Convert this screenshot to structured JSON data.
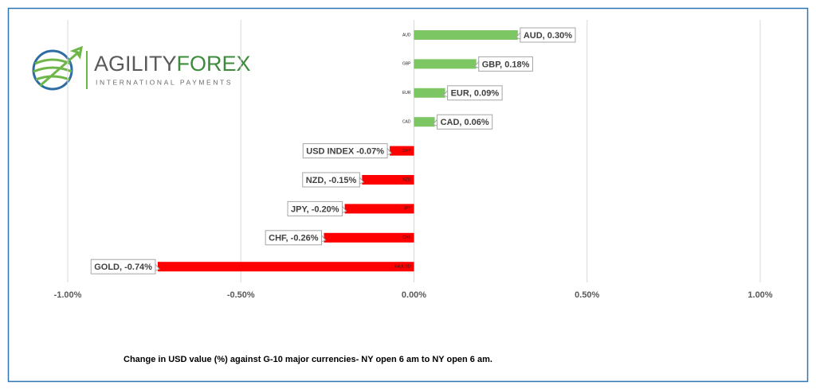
{
  "logo": {
    "brand_first": "AGILITY",
    "brand_second": "FOREX",
    "tagline": "INTERNATIONAL PAYMENTS"
  },
  "chart_data": {
    "type": "barh",
    "caption": "Change in  USD value (%)  against  G-10 major currencies- NY open 6 am to NY open 6 am.",
    "categories": [
      "AUD",
      "GBP",
      "EUR",
      "CAD",
      "DXY",
      "NZD",
      "JPY",
      "CHF",
      "XAUUSD"
    ],
    "values": [
      0.3,
      0.18,
      0.09,
      0.06,
      -0.07,
      -0.15,
      -0.2,
      -0.26,
      -0.74
    ],
    "value_labels": [
      "AUD, 0.30%",
      "GBP, 0.18%",
      "EUR, 0.09%",
      "CAD, 0.06%",
      "USD INDEX -0.07%",
      "NZD, -0.15%",
      "JPY, -0.20%",
      "CHF, -0.26%",
      "GOLD, -0.74%"
    ],
    "colors": [
      "#7cc764",
      "#7cc764",
      "#7cc764",
      "#7cc764",
      "#ff0000",
      "#ff0000",
      "#ff0000",
      "#ff0000",
      "#ff0000"
    ],
    "xlim": [
      -1.0,
      1.0
    ],
    "xticks": [
      {
        "value": -1.0,
        "label": "-1.00%"
      },
      {
        "value": -0.5,
        "label": "-0.50%"
      },
      {
        "value": 0,
        "label": "0.00%"
      },
      {
        "value": 0.5,
        "label": "0.50%"
      },
      {
        "value": 1.0,
        "label": "1.00%"
      }
    ],
    "grid": true
  }
}
